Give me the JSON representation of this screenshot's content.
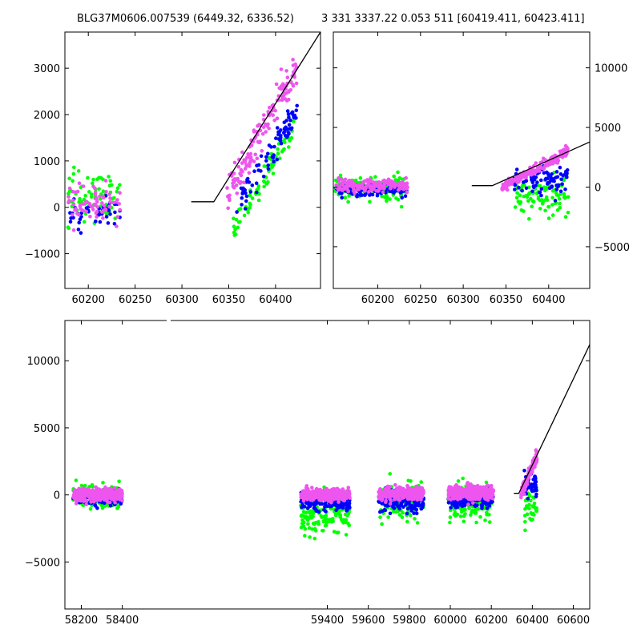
{
  "titles": {
    "left": "BLG37M0606.007539 (6449.32, 6336.52)",
    "right": "3 331 3337.22 0.053 511 [60419.411, 60423.411]"
  },
  "colors": {
    "green": "#00ff00",
    "blue": "#0000ff",
    "magenta": "#ee55ee",
    "model": "#000000"
  },
  "chart_data": [
    {
      "id": "top-left",
      "type": "scatter",
      "xlim": [
        60175,
        60448
      ],
      "ylim": [
        -1750,
        3780
      ],
      "xticks": [
        60200,
        60250,
        60300,
        60350,
        60400
      ],
      "yticks": [
        -1000,
        0,
        1000,
        2000,
        3000
      ],
      "ytick_side": "left",
      "series": [
        {
          "color": "green",
          "clusters": [
            {
              "x": [
                60178,
                60234
              ],
              "y": [
                -1200,
                1650
              ],
              "n": 70,
              "seed": 11
            },
            {
              "x": [
                60355,
                60422
              ],
              "y": [
                -500,
                2400
              ],
              "n": 80,
              "seed": 12
            }
          ]
        },
        {
          "color": "blue",
          "clusters": [
            {
              "x": [
                60178,
                60234
              ],
              "y": [
                -900,
                700
              ],
              "n": 45,
              "seed": 13
            },
            {
              "x": [
                60358,
                60423
              ],
              "y": [
                0,
                2600
              ],
              "n": 80,
              "seed": 14
            }
          ]
        },
        {
          "color": "magenta",
          "clusters": [
            {
              "x": [
                60178,
                60234
              ],
              "y": [
                -900,
                1100
              ],
              "n": 70,
              "seed": 15
            },
            {
              "x": [
                60348,
                60423
              ],
              "y": [
                300,
                3650
              ],
              "n": 150,
              "seed": 16
            }
          ]
        }
      ],
      "model": {
        "x": [
          60310,
          60334,
          60448
        ],
        "y": [
          120,
          120,
          3780
        ]
      }
    },
    {
      "id": "top-right",
      "type": "scatter",
      "xlim": [
        60148,
        60448
      ],
      "ylim": [
        -8500,
        13000
      ],
      "xticks": [
        60200,
        60250,
        60300,
        60350,
        60400
      ],
      "yticks": [
        -5000,
        0,
        5000,
        10000
      ],
      "ytick_side": "right",
      "series": [
        {
          "color": "green",
          "clusters": [
            {
              "x": [
                60150,
                60235
              ],
              "y": [
                -2500,
                2200
              ],
              "n": 110,
              "seed": 21
            },
            {
              "x": [
                60360,
                60423
              ],
              "y": [
                -4500,
                3000
              ],
              "n": 90,
              "seed": 22
            }
          ]
        },
        {
          "color": "blue",
          "clusters": [
            {
              "x": [
                60150,
                60235
              ],
              "y": [
                -1500,
                1000
              ],
              "n": 110,
              "seed": 23
            },
            {
              "x": [
                60358,
                60423
              ],
              "y": [
                -2000,
                3200
              ],
              "n": 90,
              "seed": 24
            }
          ]
        },
        {
          "color": "magenta",
          "clusters": [
            {
              "x": [
                60150,
                60235
              ],
              "y": [
                -1100,
                1300
              ],
              "n": 170,
              "seed": 25
            },
            {
              "x": [
                60345,
                60423
              ],
              "y": [
                0,
                3700
              ],
              "n": 170,
              "seed": 26
            }
          ]
        }
      ],
      "model": {
        "x": [
          60310,
          60334,
          60448
        ],
        "y": [
          120,
          120,
          3780
        ]
      }
    },
    {
      "id": "bottom",
      "type": "scatter",
      "xlim": [
        58120,
        60680
      ],
      "ylim": [
        -8500,
        13000
      ],
      "xticks": [
        58200,
        58400,
        59400,
        59600,
        59800,
        60000,
        60200,
        60400,
        60600
      ],
      "yticks": [
        -5000,
        0,
        5000,
        10000
      ],
      "ytick_side": "left",
      "series": [
        {
          "color": "green",
          "clusters": [
            {
              "x": [
                58160,
                58400
              ],
              "y": [
                -2200,
                2000
              ],
              "n": 120,
              "seed": 31
            },
            {
              "x": [
                59270,
                59510
              ],
              "y": [
                -4500,
                2000
              ],
              "n": 160,
              "seed": 32
            },
            {
              "x": [
                59650,
                59870
              ],
              "y": [
                -3500,
                2800
              ],
              "n": 140,
              "seed": 33
            },
            {
              "x": [
                59990,
                60210
              ],
              "y": [
                -3500,
                2500
              ],
              "n": 140,
              "seed": 34
            },
            {
              "x": [
                60360,
                60423
              ],
              "y": [
                -4500,
                3000
              ],
              "n": 40,
              "seed": 35
            }
          ]
        },
        {
          "color": "blue",
          "clusters": [
            {
              "x": [
                58160,
                58400
              ],
              "y": [
                -1500,
                1000
              ],
              "n": 140,
              "seed": 41
            },
            {
              "x": [
                59270,
                59510
              ],
              "y": [
                -2000,
                1000
              ],
              "n": 170,
              "seed": 42
            },
            {
              "x": [
                59650,
                59870
              ],
              "y": [
                -2200,
                1300
              ],
              "n": 160,
              "seed": 43
            },
            {
              "x": [
                59990,
                60210
              ],
              "y": [
                -2000,
                1300
              ],
              "n": 160,
              "seed": 44
            },
            {
              "x": [
                60360,
                60423
              ],
              "y": [
                -1500,
                3000
              ],
              "n": 50,
              "seed": 45
            }
          ]
        },
        {
          "color": "magenta",
          "clusters": [
            {
              "x": [
                58160,
                58400
              ],
              "y": [
                -1100,
                1100
              ],
              "n": 280,
              "seed": 51
            },
            {
              "x": [
                59270,
                59510
              ],
              "y": [
                -1000,
                1000
              ],
              "n": 300,
              "seed": 52
            },
            {
              "x": [
                59650,
                59870
              ],
              "y": [
                -1100,
                1300
              ],
              "n": 300,
              "seed": 53
            },
            {
              "x": [
                59990,
                60210
              ],
              "y": [
                -1200,
                1500
              ],
              "n": 300,
              "seed": 54
            },
            {
              "x": [
                60345,
                60423
              ],
              "y": [
                0,
                3700
              ],
              "n": 130,
              "seed": 55
            }
          ]
        }
      ],
      "model": {
        "x": [
          60310,
          60334,
          60680
        ],
        "y": [
          120,
          120,
          11200
        ]
      }
    }
  ]
}
